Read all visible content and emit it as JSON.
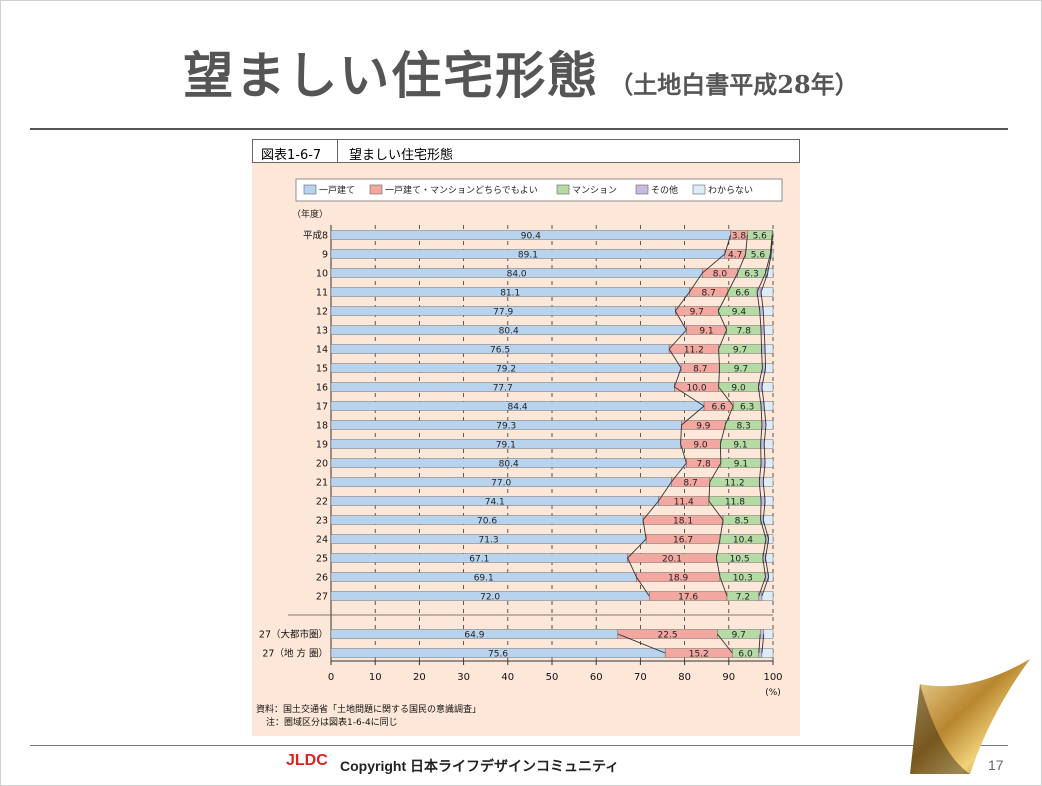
{
  "slide": {
    "title": "望ましい住宅形態",
    "subtitle": "（土地白書平成28年）",
    "page_number": "17",
    "footer_logo": "JLDC",
    "footer_text": "Copyright 日本ライフデザインコミュニティ"
  },
  "figure": {
    "number": "図表1-6-7",
    "title": "望ましい住宅形態",
    "source": "資料：国土交通省「土地問題に関する国民の意識調査」",
    "note": "注：圏域区分は図表1-6-4に同じ"
  },
  "chart_data": {
    "type": "bar",
    "orientation": "horizontal-stacked-100",
    "y_axis_header": "（年度）",
    "x_unit": "(%)",
    "xlim": [
      0,
      100
    ],
    "xticks": [
      0,
      10,
      20,
      30,
      40,
      50,
      60,
      70,
      80,
      90,
      100
    ],
    "legend_position": "top",
    "colors": {
      "detached": "#b7d3ee",
      "either": "#f2a8a0",
      "mansion": "#b5dba4",
      "other": "#c9b8df",
      "unknown": "#dcecf8"
    },
    "series_names": [
      "一戸建て",
      "一戸建て・マンションどちらでもよい",
      "マンション",
      "その他",
      "わからない"
    ],
    "categories": [
      "平成8",
      "9",
      "10",
      "11",
      "12",
      "13",
      "14",
      "15",
      "16",
      "17",
      "18",
      "19",
      "20",
      "21",
      "22",
      "23",
      "24",
      "25",
      "26",
      "27",
      "27（大都市圏）",
      "27（地 方 圏）"
    ],
    "series": [
      {
        "name": "一戸建て",
        "values": [
          90.4,
          89.1,
          84.0,
          81.1,
          77.9,
          80.4,
          76.5,
          79.2,
          77.7,
          84.4,
          79.3,
          79.1,
          80.4,
          77.0,
          74.1,
          70.6,
          71.3,
          67.1,
          69.1,
          72.0,
          64.9,
          75.6
        ]
      },
      {
        "name": "一戸建て・マンションどちらでもよい",
        "values": [
          3.8,
          4.7,
          8.0,
          8.7,
          9.7,
          9.1,
          11.2,
          8.7,
          10.0,
          6.6,
          9.9,
          9.0,
          7.8,
          8.7,
          11.4,
          18.1,
          16.7,
          20.1,
          18.9,
          17.6,
          22.5,
          15.2
        ]
      },
      {
        "name": "マンション",
        "values": [
          5.6,
          5.6,
          6.3,
          6.6,
          9.4,
          7.8,
          9.7,
          9.7,
          9.0,
          6.3,
          8.3,
          9.1,
          9.1,
          11.2,
          11.8,
          8.5,
          10.4,
          10.5,
          10.3,
          7.2,
          9.7,
          6.0
        ]
      },
      {
        "name": "その他",
        "values": [
          0.1,
          0.2,
          0.5,
          0.9,
          0.8,
          0.7,
          0.8,
          0.7,
          0.8,
          0.7,
          0.9,
          0.8,
          0.9,
          0.9,
          0.9,
          0.6,
          0.6,
          0.6,
          0.7,
          0.7,
          0.8,
          0.7
        ]
      },
      {
        "name": "わからない",
        "values": [
          0.1,
          0.4,
          1.2,
          2.7,
          2.2,
          2.0,
          1.8,
          1.7,
          2.5,
          2.0,
          1.6,
          2.0,
          1.8,
          2.2,
          1.8,
          2.2,
          1.0,
          1.7,
          1.0,
          2.5,
          2.1,
          2.5
        ]
      }
    ],
    "labels": [
      [
        "90.4",
        "3.8",
        "5.6"
      ],
      [
        "89.1",
        "4.7",
        "5.6"
      ],
      [
        "84.0",
        "8.0",
        "6.3"
      ],
      [
        "81.1",
        "8.7",
        "6.6"
      ],
      [
        "77.9",
        "9.7",
        "9.4"
      ],
      [
        "80.4",
        "9.1",
        "7.8"
      ],
      [
        "76.5",
        "11.2",
        "9.7"
      ],
      [
        "79.2",
        "8.7",
        "9.7"
      ],
      [
        "77.7",
        "10.0",
        "9.0"
      ],
      [
        "84.4",
        "6.6",
        "6.3"
      ],
      [
        "79.3",
        "9.9",
        "8.3"
      ],
      [
        "79.1",
        "9.0",
        "9.1"
      ],
      [
        "80.4",
        "7.8",
        "9.1"
      ],
      [
        "77.0",
        "8.7",
        "11.2"
      ],
      [
        "74.1",
        "11.4",
        "11.8"
      ],
      [
        "70.6",
        "18.1",
        "8.5"
      ],
      [
        "71.3",
        "16.7",
        "10.4"
      ],
      [
        "67.1",
        "20.1",
        "10.5"
      ],
      [
        "69.1",
        "18.9",
        "10.3"
      ],
      [
        "72.0",
        "17.6",
        "7.2"
      ],
      [
        "64.9",
        "22.5",
        "9.7"
      ],
      [
        "75.6",
        "15.2",
        "6.0"
      ]
    ]
  }
}
